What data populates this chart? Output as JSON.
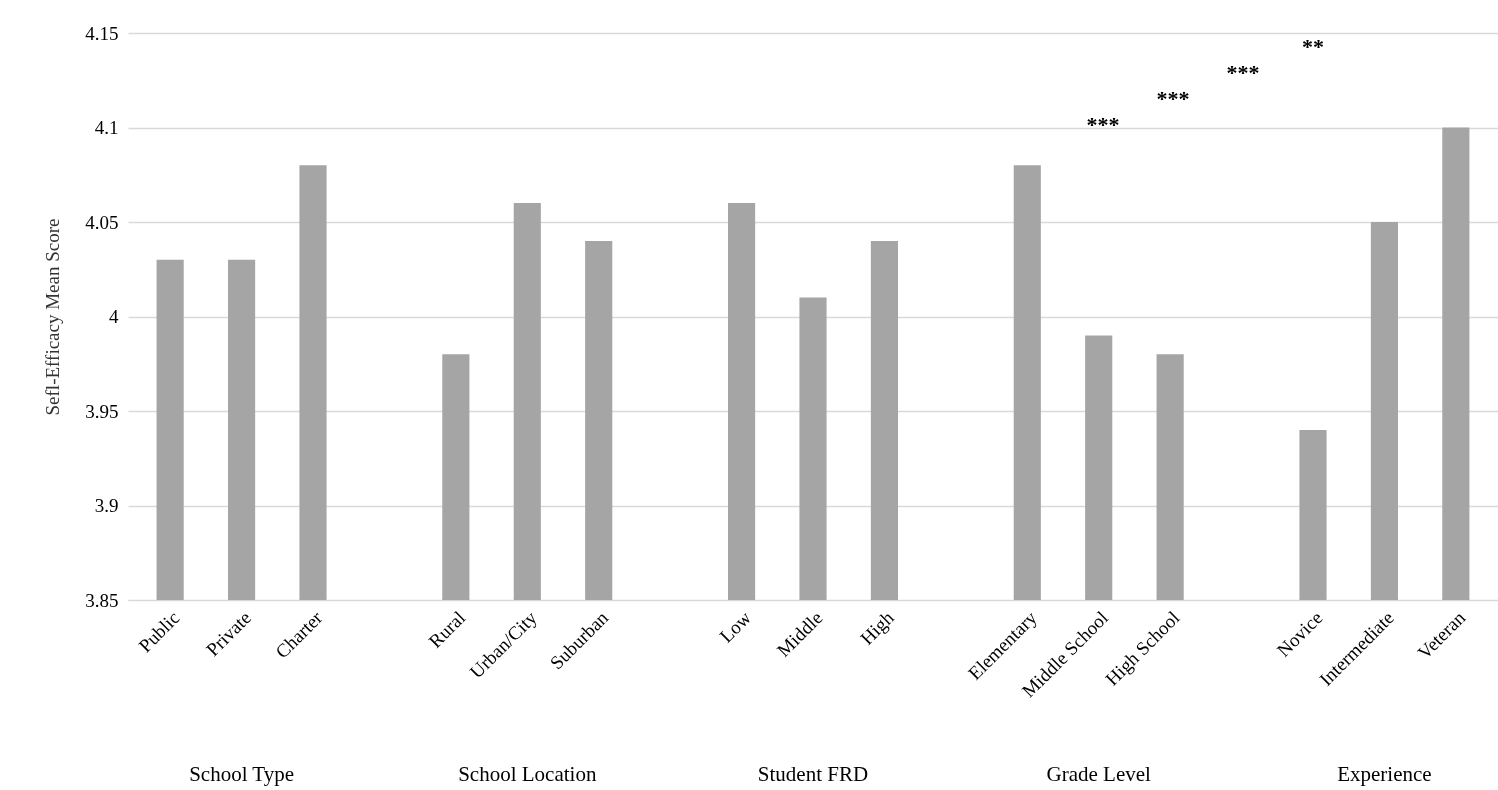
{
  "chart_data": {
    "type": "bar",
    "ylabel": "Sefl-Efficacy Mean Score",
    "categories": [
      "Public",
      "Private",
      "Charter",
      null,
      "Rural",
      "Urban/City",
      "Suburban",
      null,
      "Low",
      "Middle",
      "High",
      null,
      "Elementary",
      "Middle School",
      "High School",
      null,
      "Novice",
      "Intermediate",
      "Veteran"
    ],
    "values": [
      4.03,
      4.03,
      4.08,
      null,
      3.98,
      4.06,
      4.04,
      null,
      4.06,
      4.01,
      4.04,
      null,
      4.08,
      3.99,
      3.98,
      null,
      3.94,
      4.05,
      4.1
    ],
    "color": "#a5a5a5",
    "ylim": [
      3.85,
      4.15
    ],
    "yticks": [
      3.85,
      3.9,
      3.95,
      4,
      4.05,
      4.1,
      4.15
    ],
    "grid": "y",
    "annotations": [
      "School Type",
      "School Location",
      "Student FRD",
      "Grade Level",
      "Experience",
      "**",
      "***",
      "***",
      "***"
    ]
  }
}
